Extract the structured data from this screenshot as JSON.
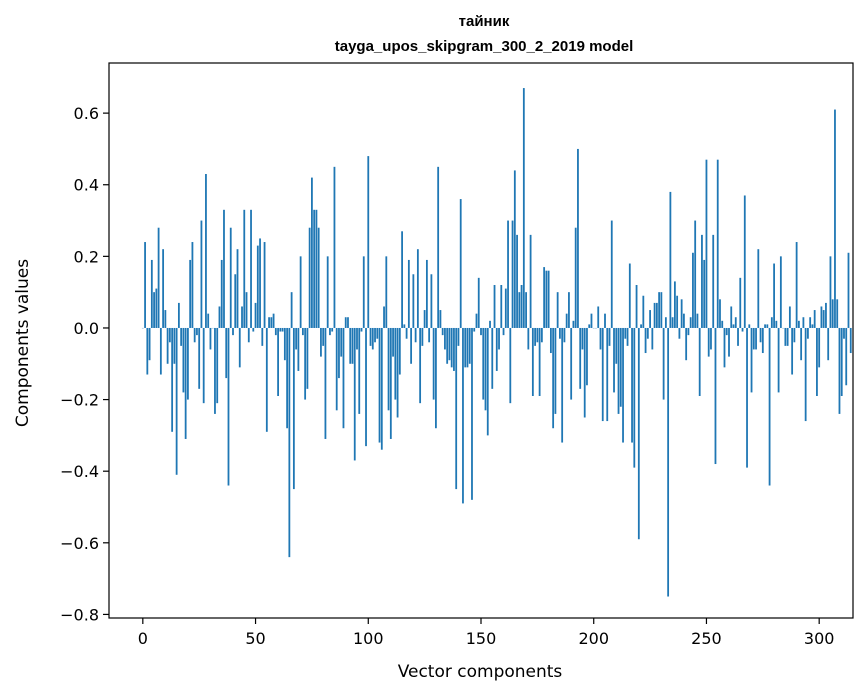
{
  "chart_data": {
    "type": "bar",
    "title": "тайник",
    "subtitle": "tayga_upos_skipgram_300_2_2019 model",
    "xlabel": "Vector components",
    "ylabel": "Components values",
    "xlim": [
      -15,
      315
    ],
    "ylim": [
      -0.81,
      0.74
    ],
    "xticks": [
      0,
      50,
      100,
      150,
      200,
      250,
      300
    ],
    "yticks": [
      -0.8,
      -0.6,
      -0.4,
      -0.2,
      0.0,
      0.2,
      0.4,
      0.6
    ],
    "ytick_labels": [
      "−0.8",
      "−0.6",
      "−0.4",
      "−0.2",
      "0.0",
      "0.2",
      "0.4",
      "0.6"
    ],
    "grid": false,
    "color": "#1f77b4",
    "values": [
      0.0,
      0.24,
      -0.13,
      -0.09,
      0.19,
      0.1,
      0.11,
      0.28,
      -0.13,
      0.22,
      0.05,
      -0.1,
      -0.04,
      -0.29,
      -0.1,
      -0.41,
      0.07,
      -0.05,
      -0.18,
      -0.31,
      -0.2,
      0.19,
      0.24,
      -0.04,
      -0.02,
      -0.17,
      0.3,
      -0.21,
      0.43,
      0.04,
      -0.06,
      0.0,
      -0.24,
      -0.21,
      0.06,
      0.19,
      0.33,
      -0.14,
      -0.44,
      0.28,
      -0.02,
      0.15,
      0.22,
      -0.11,
      0.06,
      0.33,
      0.1,
      -0.04,
      0.33,
      -0.01,
      0.07,
      0.23,
      0.25,
      -0.05,
      0.24,
      -0.29,
      0.03,
      0.03,
      0.04,
      -0.02,
      -0.19,
      -0.01,
      -0.01,
      -0.09,
      -0.28,
      -0.64,
      0.1,
      -0.45,
      -0.06,
      -0.12,
      0.2,
      -0.02,
      -0.2,
      -0.17,
      0.28,
      0.42,
      0.33,
      0.33,
      0.28,
      -0.08,
      -0.05,
      -0.31,
      0.2,
      -0.02,
      -0.01,
      0.45,
      -0.23,
      -0.14,
      -0.08,
      -0.28,
      0.03,
      0.03,
      -0.1,
      -0.1,
      -0.37,
      -0.06,
      -0.24,
      -0.01,
      0.2,
      -0.33,
      0.48,
      -0.05,
      -0.06,
      -0.04,
      -0.03,
      -0.32,
      -0.34,
      0.06,
      0.2,
      -0.23,
      -0.31,
      -0.08,
      -0.2,
      -0.25,
      -0.13,
      0.27,
      0.01,
      -0.03,
      0.19,
      -0.1,
      0.15,
      -0.04,
      0.22,
      -0.21,
      -0.05,
      0.05,
      0.19,
      -0.04,
      0.15,
      -0.2,
      -0.28,
      0.45,
      0.05,
      -0.02,
      -0.06,
      -0.1,
      -0.09,
      -0.11,
      -0.12,
      -0.45,
      -0.05,
      0.36,
      -0.49,
      -0.11,
      -0.11,
      -0.1,
      -0.48,
      -0.01,
      0.04,
      0.14,
      -0.02,
      -0.2,
      -0.23,
      -0.3,
      0.02,
      -0.17,
      0.12,
      -0.12,
      -0.06,
      0.12,
      -0.02,
      0.11,
      0.3,
      -0.21,
      0.3,
      0.44,
      0.26,
      0.1,
      0.12,
      0.67,
      0.1,
      -0.06,
      0.26,
      -0.19,
      -0.05,
      -0.04,
      -0.19,
      -0.04,
      0.17,
      0.16,
      0.16,
      -0.07,
      -0.28,
      -0.24,
      0.1,
      -0.03,
      -0.32,
      -0.04,
      0.04,
      0.1,
      -0.2,
      0.02,
      0.28,
      0.5,
      -0.17,
      -0.06,
      -0.25,
      -0.16,
      0.01,
      0.04,
      0.0,
      0.0,
      0.06,
      -0.06,
      -0.26,
      0.04,
      -0.26,
      -0.05,
      0.3,
      -0.18,
      -0.1,
      -0.24,
      -0.22,
      -0.32,
      -0.03,
      -0.05,
      0.18,
      -0.32,
      -0.39,
      0.12,
      -0.59,
      0.01,
      0.09,
      -0.07,
      -0.03,
      0.05,
      -0.06,
      0.07,
      0.07,
      0.1,
      0.1,
      -0.2,
      0.03,
      -0.75,
      0.38,
      0.03,
      0.13,
      0.09,
      -0.03,
      0.08,
      0.04,
      -0.09,
      -0.02,
      0.03,
      0.21,
      0.3,
      0.04,
      -0.19,
      0.26,
      0.19,
      0.47,
      -0.08,
      -0.06,
      0.26,
      -0.38,
      0.47,
      0.08,
      0.02,
      -0.11,
      -0.02,
      -0.08,
      0.06,
      0.01,
      0.03,
      -0.05,
      0.14,
      -0.01,
      0.37,
      -0.39,
      0.01,
      -0.18,
      -0.06,
      -0.06,
      0.22,
      -0.04,
      -0.07,
      0.01,
      0.01,
      -0.44,
      0.03,
      0.18,
      0.02,
      -0.18,
      0.2,
      0.0,
      -0.05,
      -0.05,
      0.06,
      -0.13,
      -0.04,
      0.24,
      0.02,
      -0.09,
      0.03,
      -0.26,
      -0.03,
      0.03,
      0.01,
      0.05,
      -0.19,
      -0.11,
      0.06,
      0.05,
      0.07,
      -0.09,
      0.2,
      0.08,
      0.61,
      0.08,
      -0.24,
      -0.19,
      -0.03,
      -0.16,
      0.21,
      -0.07
    ]
  }
}
